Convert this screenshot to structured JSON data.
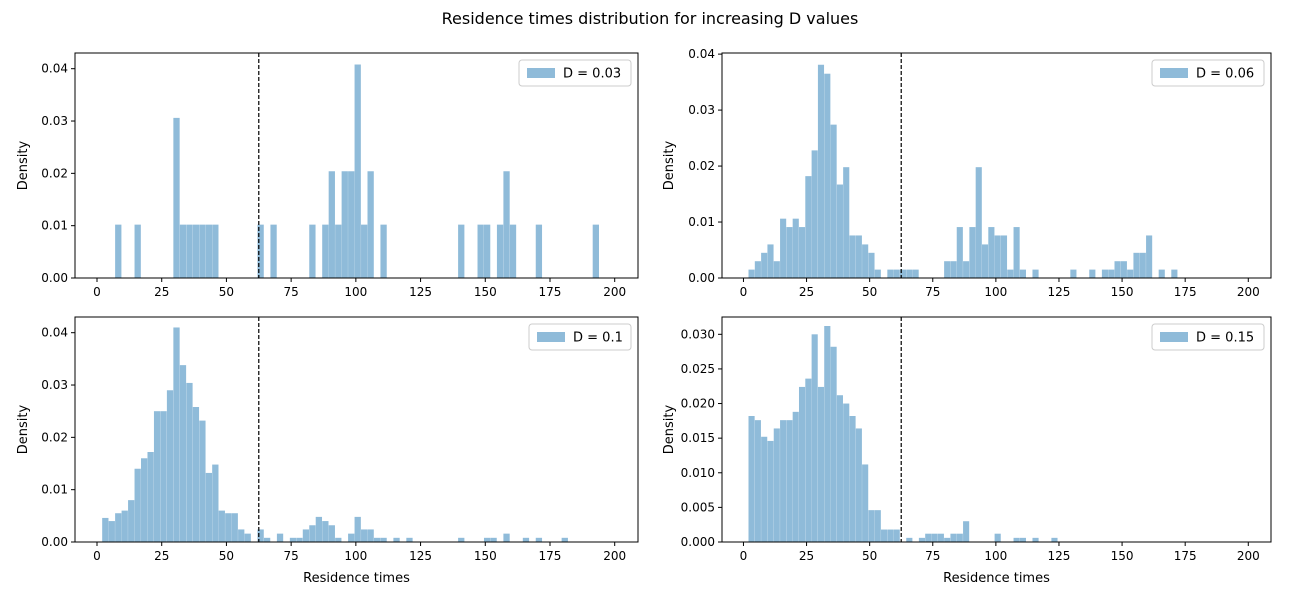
{
  "figure": {
    "title": "Residence times distribution for increasing D values"
  },
  "chart_data": [
    {
      "type": "bar",
      "subtype": "histogram",
      "legend_label": "D = 0.03",
      "legend_position": "upper right",
      "xlabel": "",
      "ylabel": "Density",
      "xlim": [
        -8.5,
        209
      ],
      "ylim": [
        0,
        0.043
      ],
      "xticks": [
        0,
        25,
        50,
        75,
        100,
        125,
        150,
        175,
        200
      ],
      "yticks": [
        "0.00",
        "0.01",
        "0.02",
        "0.03",
        "0.04"
      ],
      "vline_x": 62.5,
      "bin_width": 2.43,
      "bins": [
        [
          7,
          0.0102
        ],
        [
          14.5,
          0.0102
        ],
        [
          29.5,
          0.0306
        ],
        [
          32,
          0.0102
        ],
        [
          34.5,
          0.0102
        ],
        [
          37,
          0.0102
        ],
        [
          39.5,
          0.0102
        ],
        [
          42,
          0.0102
        ],
        [
          44.5,
          0.0102
        ],
        [
          62,
          0.0102
        ],
        [
          67,
          0.0102
        ],
        [
          82,
          0.0102
        ],
        [
          87,
          0.0102
        ],
        [
          89.5,
          0.0204
        ],
        [
          92,
          0.0102
        ],
        [
          94.5,
          0.0204
        ],
        [
          97,
          0.0204
        ],
        [
          99.5,
          0.0408
        ],
        [
          102,
          0.0102
        ],
        [
          104.5,
          0.0204
        ],
        [
          109.5,
          0.0102
        ],
        [
          139.5,
          0.0102
        ],
        [
          147,
          0.0102
        ],
        [
          149.5,
          0.0102
        ],
        [
          154.5,
          0.0102
        ],
        [
          157,
          0.0204
        ],
        [
          159.5,
          0.0102
        ],
        [
          169.5,
          0.0102
        ],
        [
          191.5,
          0.0102
        ]
      ]
    },
    {
      "type": "bar",
      "subtype": "histogram",
      "legend_label": "D = 0.06",
      "legend_position": "upper right",
      "xlabel": "",
      "ylabel": "Density",
      "xlim": [
        -8.5,
        209
      ],
      "ylim": [
        0,
        0.0402
      ],
      "xticks": [
        0,
        25,
        50,
        75,
        100,
        125,
        150,
        175,
        200
      ],
      "yticks": [
        "0.00",
        "0.01",
        "0.02",
        "0.03",
        "0.04"
      ],
      "vline_x": 62.5,
      "bin_width": 2.43,
      "bins": [
        [
          2,
          0.0015
        ],
        [
          4.5,
          0.003
        ],
        [
          7,
          0.0045
        ],
        [
          9.5,
          0.006
        ],
        [
          12,
          0.003
        ],
        [
          14.5,
          0.0106
        ],
        [
          17,
          0.0091
        ],
        [
          19.5,
          0.0106
        ],
        [
          22,
          0.0091
        ],
        [
          24.5,
          0.0182
        ],
        [
          27,
          0.0228
        ],
        [
          29.5,
          0.0381
        ],
        [
          32,
          0.0365
        ],
        [
          34.5,
          0.0274
        ],
        [
          37,
          0.0167
        ],
        [
          39.5,
          0.0198
        ],
        [
          42,
          0.0076
        ],
        [
          44.5,
          0.0076
        ],
        [
          47,
          0.006
        ],
        [
          49.5,
          0.0045
        ],
        [
          52,
          0.0015
        ],
        [
          57,
          0.0015
        ],
        [
          59.5,
          0.0015
        ],
        [
          62,
          0.0015
        ],
        [
          64.5,
          0.0015
        ],
        [
          67,
          0.0015
        ],
        [
          79.5,
          0.003
        ],
        [
          82,
          0.003
        ],
        [
          84.5,
          0.0091
        ],
        [
          87,
          0.003
        ],
        [
          89.5,
          0.0091
        ],
        [
          92,
          0.0198
        ],
        [
          94.5,
          0.006
        ],
        [
          97,
          0.0091
        ],
        [
          99.5,
          0.0076
        ],
        [
          102,
          0.0076
        ],
        [
          104.5,
          0.0015
        ],
        [
          107,
          0.0091
        ],
        [
          109.5,
          0.0015
        ],
        [
          114.5,
          0.0015
        ],
        [
          129.5,
          0.0015
        ],
        [
          137,
          0.0015
        ],
        [
          142,
          0.0015
        ],
        [
          144.5,
          0.0015
        ],
        [
          147,
          0.003
        ],
        [
          149.5,
          0.003
        ],
        [
          152,
          0.0015
        ],
        [
          154.5,
          0.0045
        ],
        [
          157,
          0.0045
        ],
        [
          159.5,
          0.0076
        ],
        [
          164.5,
          0.0015
        ],
        [
          169.5,
          0.0015
        ]
      ]
    },
    {
      "type": "bar",
      "subtype": "histogram",
      "legend_label": "D = 0.1",
      "legend_position": "upper right",
      "xlabel": "Residence times",
      "ylabel": "Density",
      "xlim": [
        -8.5,
        209
      ],
      "ylim": [
        0,
        0.043
      ],
      "xticks": [
        0,
        25,
        50,
        75,
        100,
        125,
        150,
        175,
        200
      ],
      "yticks": [
        "0.00",
        "0.01",
        "0.02",
        "0.03",
        "0.04"
      ],
      "vline_x": 62.5,
      "bin_width": 2.43,
      "bins": [
        [
          2,
          0.0046
        ],
        [
          4.5,
          0.004
        ],
        [
          7,
          0.0055
        ],
        [
          9.5,
          0.006
        ],
        [
          12,
          0.008
        ],
        [
          14.5,
          0.014
        ],
        [
          17,
          0.016
        ],
        [
          19.5,
          0.0172
        ],
        [
          22,
          0.025
        ],
        [
          24.5,
          0.025
        ],
        [
          27,
          0.029
        ],
        [
          29.5,
          0.041
        ],
        [
          32,
          0.0338
        ],
        [
          34.5,
          0.0304
        ],
        [
          37,
          0.0258
        ],
        [
          39.5,
          0.0232
        ],
        [
          42,
          0.0132
        ],
        [
          44.5,
          0.0148
        ],
        [
          47,
          0.006
        ],
        [
          49.5,
          0.0055
        ],
        [
          52,
          0.0055
        ],
        [
          54.5,
          0.0024
        ],
        [
          57,
          0.0016
        ],
        [
          62,
          0.0024
        ],
        [
          64.5,
          0.0008
        ],
        [
          69.5,
          0.0016
        ],
        [
          74.5,
          0.0008
        ],
        [
          77,
          0.0008
        ],
        [
          79.5,
          0.0024
        ],
        [
          82,
          0.0032
        ],
        [
          84.5,
          0.0048
        ],
        [
          87,
          0.004
        ],
        [
          89.5,
          0.0032
        ],
        [
          92,
          0.0008
        ],
        [
          97,
          0.0016
        ],
        [
          99.5,
          0.0048
        ],
        [
          102,
          0.0024
        ],
        [
          104.5,
          0.0024
        ],
        [
          107,
          0.0008
        ],
        [
          109.5,
          0.0008
        ],
        [
          114.5,
          0.0008
        ],
        [
          119.5,
          0.0008
        ],
        [
          139.5,
          0.0008
        ],
        [
          149.5,
          0.0008
        ],
        [
          152,
          0.0008
        ],
        [
          157,
          0.0016
        ],
        [
          164.5,
          0.0008
        ],
        [
          169.5,
          0.0008
        ],
        [
          179.5,
          0.0008
        ]
      ]
    },
    {
      "type": "bar",
      "subtype": "histogram",
      "legend_label": "D = 0.15",
      "legend_position": "upper right",
      "xlabel": "Residence times",
      "ylabel": "Density",
      "xlim": [
        -8.5,
        209
      ],
      "ylim": [
        0,
        0.0325
      ],
      "xticks": [
        0,
        25,
        50,
        75,
        100,
        125,
        150,
        175,
        200
      ],
      "yticks": [
        "0.000",
        "0.005",
        "0.010",
        "0.015",
        "0.020",
        "0.025",
        "0.030"
      ],
      "vline_x": 62.5,
      "bin_width": 2.43,
      "bins": [
        [
          2,
          0.0182
        ],
        [
          4.5,
          0.0176
        ],
        [
          7,
          0.0152
        ],
        [
          9.5,
          0.0146
        ],
        [
          12,
          0.0164
        ],
        [
          14.5,
          0.0176
        ],
        [
          17,
          0.0176
        ],
        [
          19.5,
          0.0188
        ],
        [
          22,
          0.0224
        ],
        [
          24.5,
          0.0236
        ],
        [
          27,
          0.03
        ],
        [
          29.5,
          0.0224
        ],
        [
          32,
          0.0312
        ],
        [
          34.5,
          0.0282
        ],
        [
          37,
          0.0212
        ],
        [
          39.5,
          0.02
        ],
        [
          42,
          0.0182
        ],
        [
          44.5,
          0.0164
        ],
        [
          47,
          0.0112
        ],
        [
          49.5,
          0.0046
        ],
        [
          52,
          0.0046
        ],
        [
          54.5,
          0.0018
        ],
        [
          57,
          0.0018
        ],
        [
          59.5,
          0.0018
        ],
        [
          64.5,
          0.0006
        ],
        [
          69.5,
          0.0006
        ],
        [
          72,
          0.0012
        ],
        [
          74.5,
          0.0012
        ],
        [
          77,
          0.0012
        ],
        [
          79.5,
          0.0006
        ],
        [
          82,
          0.0012
        ],
        [
          84.5,
          0.0012
        ],
        [
          87,
          0.003
        ],
        [
          99.5,
          0.0012
        ],
        [
          107,
          0.0006
        ],
        [
          109.5,
          0.0006
        ],
        [
          114.5,
          0.0006
        ],
        [
          122,
          0.0006
        ]
      ]
    }
  ]
}
